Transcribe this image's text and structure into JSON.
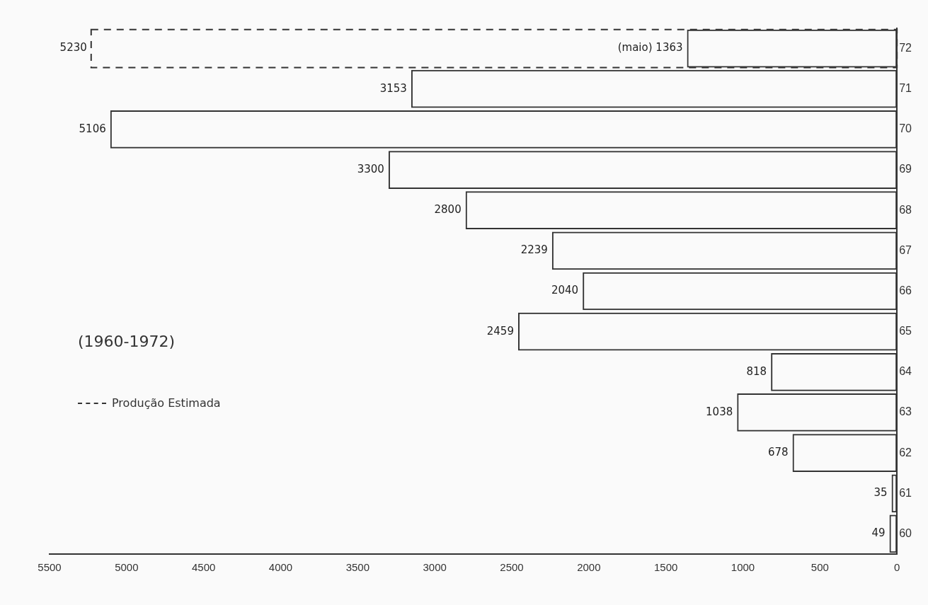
{
  "chart_data": {
    "type": "bar",
    "orientation": "horizontal",
    "title": "(1960-1972)",
    "categories": [
      "72",
      "71",
      "70",
      "69",
      "68",
      "67",
      "66",
      "65",
      "64",
      "63",
      "62",
      "61",
      "60"
    ],
    "series": [
      {
        "color": "#333333",
        "values": [
          1363,
          3153,
          5106,
          3300,
          2800,
          2239,
          2040,
          2459,
          818,
          1038,
          678,
          35,
          49
        ],
        "value_labels": [
          "(maio) 1363",
          "3153",
          "5106",
          "3300",
          "2800",
          "2239",
          "2040",
          "2459",
          "818",
          "1038",
          "678",
          "35",
          "49"
        ]
      },
      {
        "name": "Produção Estimada",
        "color": "#333333",
        "line_style": "dashed",
        "values": [
          5230,
          null,
          null,
          null,
          null,
          null,
          null,
          null,
          null,
          null,
          null,
          null,
          null
        ],
        "value_labels": [
          "5230",
          null,
          null,
          null,
          null,
          null,
          null,
          null,
          null,
          null,
          null,
          null,
          null
        ]
      }
    ],
    "xlim": [
      5500,
      0
    ],
    "xticks": [
      0,
      500,
      1000,
      1500,
      2000,
      2500,
      3000,
      3500,
      4000,
      4500,
      5000,
      5500
    ],
    "grid": false,
    "legend": "left"
  }
}
